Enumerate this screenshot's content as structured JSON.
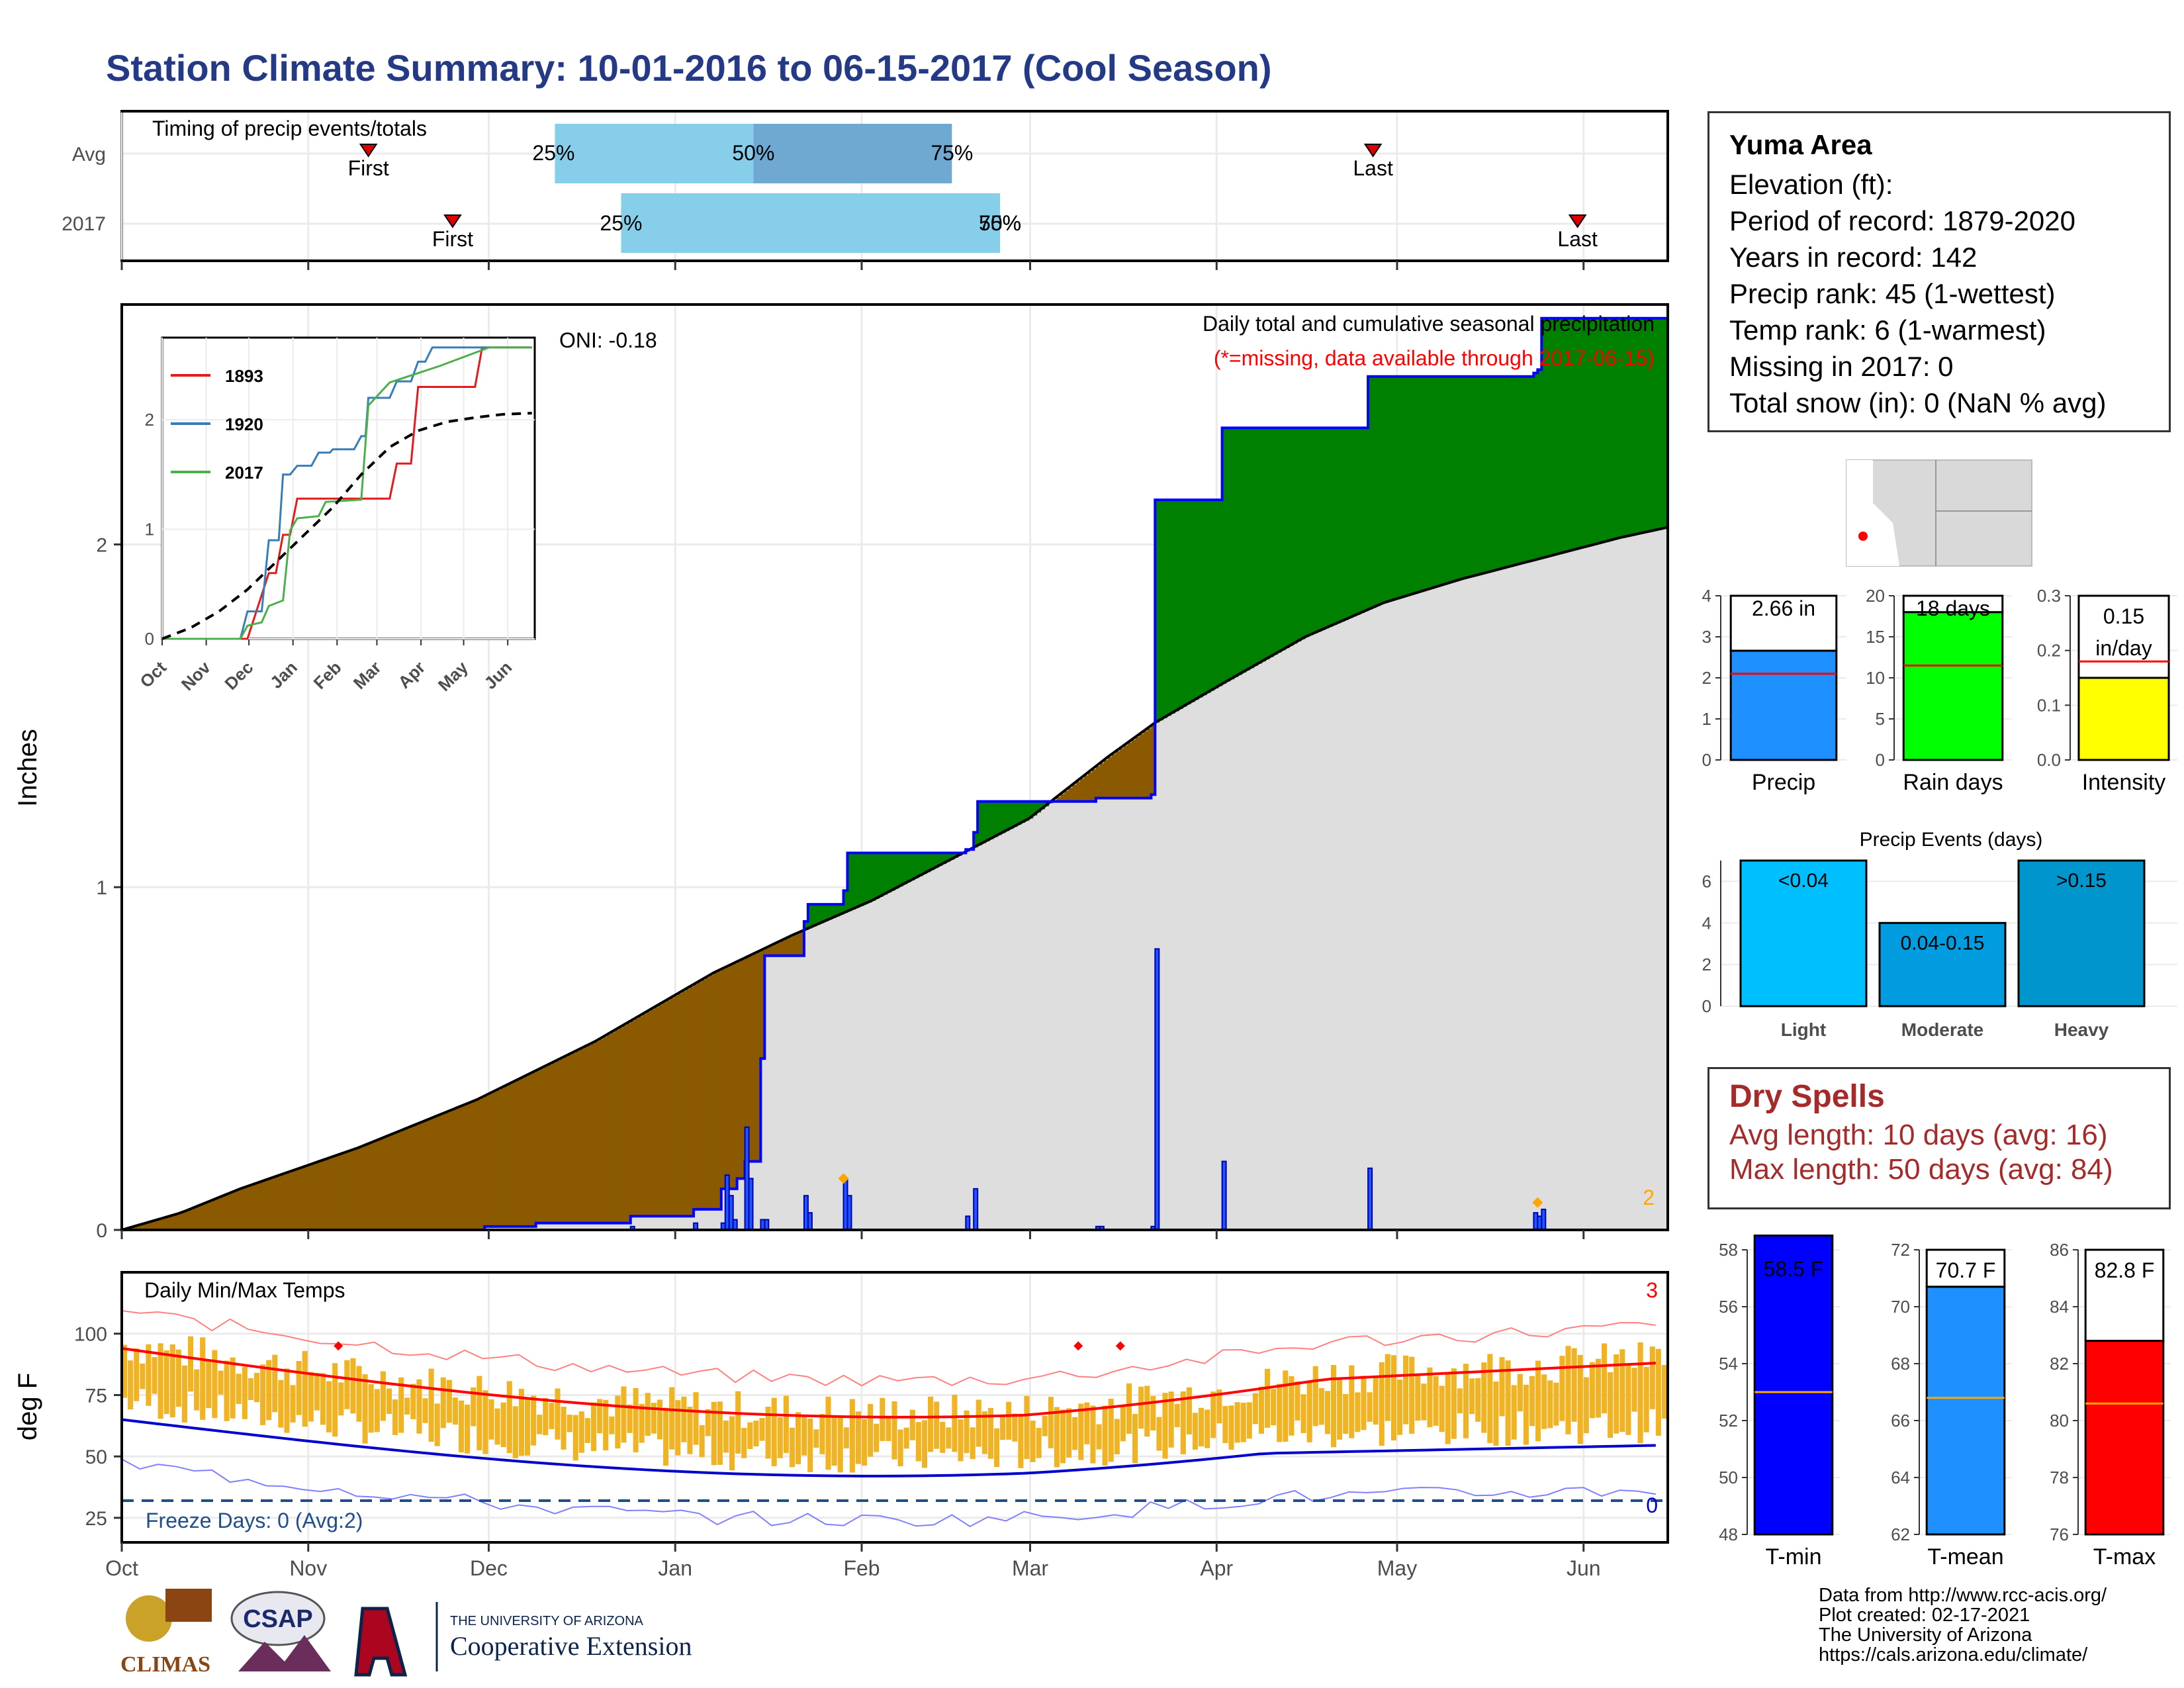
{
  "title": "Station Climate Summary: 10-01-2016 to 06-15-2017 (Cool Season)",
  "timing": {
    "label": "Timing of precip events/totals",
    "rows": [
      {
        "name": "Avg",
        "first": "First",
        "last": "Last",
        "p25": "25%",
        "p50": "50%",
        "p75": "75%"
      },
      {
        "name": "2017",
        "first": "First",
        "last": "Last",
        "p25": "25%",
        "p50": "50%",
        "p75": "75%"
      }
    ]
  },
  "station": {
    "name": "Yuma Area",
    "elevation": "Elevation (ft):",
    "period": "Period of record: 1879-2020",
    "years": "Years in record: 142",
    "precip_rank": "Precip rank: 45 (1-wettest)",
    "temp_rank": "Temp rank: 6 (1-warmest)",
    "missing": "Missing in 2017: 0",
    "snow": "Total snow (in): 0 (NaN % avg)"
  },
  "precip_panel": {
    "title": "Daily total and cumulative seasonal precipitation",
    "subtitle": "(*=missing, data available through 2017-06-15)",
    "oni": "ONI: -0.18",
    "ylabel": "Inches",
    "corner_count": "2"
  },
  "temp_panel": {
    "title": "Daily Min/Max Temps",
    "ylabel": "deg F",
    "freeze": "Freeze Days: 0 (Avg:2)",
    "top_count": "3",
    "bottom_count": "0"
  },
  "month_labels": [
    "Oct",
    "Nov",
    "Dec",
    "Jan",
    "Feb",
    "Mar",
    "Apr",
    "May",
    "Jun"
  ],
  "dry_spells": {
    "title": "Dry Spells",
    "avg": "Avg length: 10 days (avg: 16)",
    "max": "Max length: 50 days (avg: 84)"
  },
  "credits": [
    "Data from http://www.rcc-acis.org/",
    "Plot created: 02-17-2021",
    "The University of Arizona",
    "https://cals.arizona.edu/climate/"
  ],
  "logos": {
    "climas": "CLIMAS",
    "csap": "CSAP",
    "ua_small": "THE UNIVERSITY OF ARIZONA",
    "ua_big": "Cooperative Extension"
  },
  "colors": {
    "title": "#243a86",
    "observed_cum": "#0000ff",
    "surplus": "#008000",
    "deficit": "#8b5a00",
    "normal": "#dedede",
    "tmax": "#ff0000",
    "tmin": "#0000cc",
    "bars": "#f0b323"
  },
  "chart_data": [
    {
      "type": "area",
      "name": "cumulative_precip",
      "x_unit": "day_of_season",
      "ylim": [
        0,
        2.7
      ],
      "yticks": [
        0,
        1,
        2
      ],
      "observed_steps": [
        [
          0,
          0
        ],
        [
          92,
          0.01
        ],
        [
          105,
          0.02
        ],
        [
          129,
          0.04
        ],
        [
          145,
          0.06
        ],
        [
          152,
          0.12
        ],
        [
          156,
          0.15
        ],
        [
          158,
          0.2
        ],
        [
          162,
          0.5
        ],
        [
          163,
          0.8
        ],
        [
          173,
          0.9
        ],
        [
          174,
          0.95
        ],
        [
          183,
          0.99
        ],
        [
          184,
          1.1
        ],
        [
          214,
          1.11
        ],
        [
          216,
          1.16
        ],
        [
          217,
          1.25
        ],
        [
          247,
          1.26
        ],
        [
          248,
          1.26
        ],
        [
          261,
          1.27
        ],
        [
          262,
          2.13
        ],
        [
          279,
          2.34
        ],
        [
          316,
          2.49
        ],
        [
          358,
          2.5
        ],
        [
          359,
          2.51
        ],
        [
          360,
          2.66
        ],
        [
          392,
          2.66
        ]
      ],
      "normal_points": [
        [
          0,
          0
        ],
        [
          15,
          0.05
        ],
        [
          30,
          0.12
        ],
        [
          60,
          0.24
        ],
        [
          90,
          0.38
        ],
        [
          120,
          0.55
        ],
        [
          150,
          0.75
        ],
        [
          170,
          0.86
        ],
        [
          190,
          0.96
        ],
        [
          210,
          1.08
        ],
        [
          230,
          1.2
        ],
        [
          250,
          1.38
        ],
        [
          262,
          1.48
        ],
        [
          280,
          1.6
        ],
        [
          300,
          1.73
        ],
        [
          320,
          1.83
        ],
        [
          340,
          1.9
        ],
        [
          360,
          1.96
        ],
        [
          380,
          2.02
        ],
        [
          392,
          2.05
        ]
      ],
      "daily_bars": [
        [
          129,
          0.01
        ],
        [
          145,
          0.02
        ],
        [
          152,
          0.02
        ],
        [
          153,
          0.16
        ],
        [
          154,
          0.1
        ],
        [
          155,
          0.03
        ],
        [
          158,
          0.3
        ],
        [
          159,
          0.15
        ],
        [
          162,
          0.03
        ],
        [
          163,
          0.03
        ],
        [
          173,
          0.1
        ],
        [
          174,
          0.05
        ],
        [
          183,
          0.15
        ],
        [
          184,
          0.1
        ],
        [
          214,
          0.04
        ],
        [
          216,
          0.12
        ],
        [
          247,
          0.01
        ],
        [
          248,
          0.01
        ],
        [
          261,
          0.01
        ],
        [
          262,
          0.82
        ],
        [
          279,
          0.2
        ],
        [
          316,
          0.18
        ],
        [
          358,
          0.05
        ],
        [
          359,
          0.04
        ],
        [
          360,
          0.06
        ]
      ]
    },
    {
      "type": "line",
      "name": "inset_cumulative",
      "x_labels": [
        "Oct",
        "Nov",
        "Dec",
        "Jan",
        "Feb",
        "Mar",
        "Apr",
        "May",
        "Jun"
      ],
      "yticks": [
        0,
        1,
        2
      ],
      "series": [
        {
          "name": "1893",
          "color": "#e41a1c",
          "points": [
            [
              0,
              0
            ],
            [
              60,
              0
            ],
            [
              75,
              0.6
            ],
            [
              80,
              0.6
            ],
            [
              85,
              0.95
            ],
            [
              90,
              0.95
            ],
            [
              95,
              1.28
            ],
            [
              110,
              1.28
            ],
            [
              150,
              1.28
            ],
            [
              160,
              1.28
            ],
            [
              165,
              1.6
            ],
            [
              175,
              1.6
            ],
            [
              180,
              2.3
            ],
            [
              210,
              2.3
            ],
            [
              220,
              2.3
            ],
            [
              225,
              2.66
            ],
            [
              260,
              2.66
            ]
          ]
        },
        {
          "name": "1920",
          "color": "#377eb8",
          "points": [
            [
              0,
              0
            ],
            [
              55,
              0
            ],
            [
              60,
              0.25
            ],
            [
              70,
              0.25
            ],
            [
              75,
              0.9
            ],
            [
              82,
              0.9
            ],
            [
              85,
              1.5
            ],
            [
              90,
              1.5
            ],
            [
              95,
              1.58
            ],
            [
              105,
              1.58
            ],
            [
              110,
              1.7
            ],
            [
              118,
              1.7
            ],
            [
              120,
              1.73
            ],
            [
              135,
              1.73
            ],
            [
              140,
              1.85
            ],
            [
              143,
              1.85
            ],
            [
              145,
              2.2
            ],
            [
              160,
              2.2
            ],
            [
              165,
              2.35
            ],
            [
              175,
              2.35
            ],
            [
              180,
              2.53
            ],
            [
              185,
              2.53
            ],
            [
              190,
              2.66
            ],
            [
              260,
              2.66
            ]
          ]
        },
        {
          "name": "2017",
          "color": "#4daf4a",
          "points": [
            [
              0,
              0
            ],
            [
              55,
              0
            ],
            [
              60,
              0.12
            ],
            [
              70,
              0.15
            ],
            [
              75,
              0.3
            ],
            [
              85,
              0.35
            ],
            [
              90,
              0.99
            ],
            [
              95,
              1.1
            ],
            [
              110,
              1.12
            ],
            [
              115,
              1.25
            ],
            [
              140,
              1.27
            ],
            [
              145,
              2.13
            ],
            [
              160,
              2.34
            ],
            [
              195,
              2.49
            ],
            [
              230,
              2.66
            ],
            [
              260,
              2.66
            ]
          ]
        },
        {
          "name": "normal",
          "color": "#000000",
          "dashed": true,
          "points": [
            [
              0,
              0
            ],
            [
              20,
              0.1
            ],
            [
              40,
              0.25
            ],
            [
              60,
              0.45
            ],
            [
              80,
              0.7
            ],
            [
              100,
              0.95
            ],
            [
              120,
              1.2
            ],
            [
              140,
              1.5
            ],
            [
              160,
              1.75
            ],
            [
              180,
              1.9
            ],
            [
              200,
              1.98
            ],
            [
              220,
              2.02
            ],
            [
              240,
              2.05
            ],
            [
              260,
              2.06
            ]
          ]
        }
      ]
    },
    {
      "type": "bar",
      "name": "summary_precip",
      "categories": [
        "Precip",
        "Rain days",
        "Intensity"
      ],
      "values": [
        2.66,
        18,
        0.15
      ],
      "labels": [
        "2.66 in",
        "18 days",
        "0.15 in/day"
      ],
      "normals": [
        2.1,
        11.5,
        0.18
      ],
      "ylims": [
        [
          0,
          4
        ],
        [
          0,
          20
        ],
        [
          0,
          0.3
        ]
      ]
    },
    {
      "type": "bar",
      "name": "precip_events",
      "title": "Precip Events (days)",
      "categories": [
        "Light",
        "Moderate",
        "Heavy"
      ],
      "values": [
        7,
        4,
        7
      ],
      "labels": [
        "<0.04",
        "0.04-0.15",
        ">0.15"
      ],
      "ylim": [
        0,
        7
      ]
    },
    {
      "type": "bar",
      "name": "summary_temp",
      "categories": [
        "T-min",
        "T-mean",
        "T-max"
      ],
      "values": [
        58.5,
        70.7,
        82.8
      ],
      "labels": [
        "58.5 F",
        "70.7 F",
        "82.8 F"
      ],
      "normals": [
        53,
        66.8,
        80.6
      ],
      "ylims": [
        [
          48,
          58
        ],
        [
          62,
          72
        ],
        [
          76,
          86
        ]
      ]
    }
  ]
}
